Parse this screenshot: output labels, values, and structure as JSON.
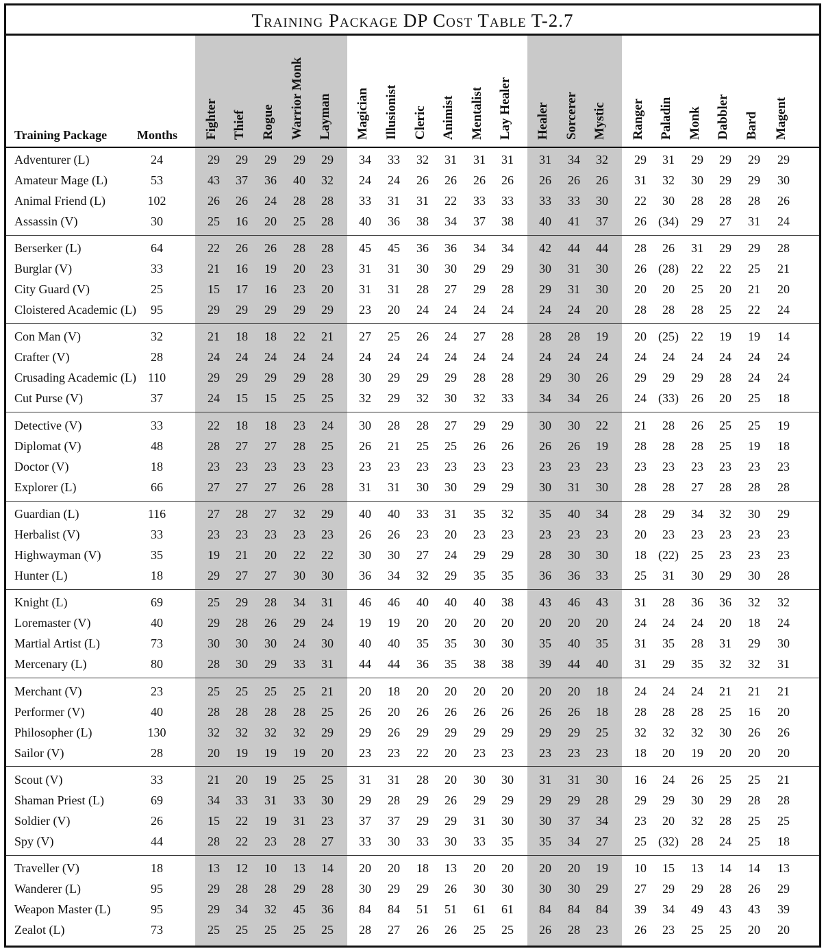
{
  "title": "Training Package DP Cost Table  T-2.7",
  "headers": {
    "package": "Training Package",
    "months": "Months",
    "professions": [
      "Fighter",
      "Thief",
      "Rogue",
      "Warrior Monk",
      "Layman",
      "Magician",
      "Illusionist",
      "Cleric",
      "Animist",
      "Mentalist",
      "Lay Healer",
      "Healer",
      "Sorcerer",
      "Mystic",
      "Ranger",
      "Paladin",
      "Monk",
      "Dabbler",
      "Bard",
      "Magent"
    ]
  },
  "rows": [
    {
      "name": "Adventurer (L)",
      "months": "24",
      "costs": [
        "29",
        "29",
        "29",
        "29",
        "29",
        "34",
        "33",
        "32",
        "31",
        "31",
        "31",
        "31",
        "34",
        "32",
        "29",
        "31",
        "29",
        "29",
        "29",
        "29"
      ]
    },
    {
      "name": "Amateur Mage (L)",
      "months": "53",
      "costs": [
        "43",
        "37",
        "36",
        "40",
        "32",
        "24",
        "24",
        "26",
        "26",
        "26",
        "26",
        "26",
        "26",
        "26",
        "31",
        "32",
        "30",
        "29",
        "29",
        "30"
      ]
    },
    {
      "name": "Animal Friend (L)",
      "months": "102",
      "costs": [
        "26",
        "26",
        "24",
        "28",
        "28",
        "33",
        "31",
        "31",
        "22",
        "33",
        "33",
        "33",
        "33",
        "30",
        "22",
        "30",
        "28",
        "28",
        "28",
        "26"
      ]
    },
    {
      "name": "Assassin (V)",
      "months": "30",
      "costs": [
        "25",
        "16",
        "20",
        "25",
        "28",
        "40",
        "36",
        "38",
        "34",
        "37",
        "38",
        "40",
        "41",
        "37",
        "26",
        "(34)",
        "29",
        "27",
        "31",
        "24"
      ]
    },
    {
      "name": "Berserker (L)",
      "months": "64",
      "costs": [
        "22",
        "26",
        "26",
        "28",
        "28",
        "45",
        "45",
        "36",
        "36",
        "34",
        "34",
        "42",
        "44",
        "44",
        "28",
        "26",
        "31",
        "29",
        "29",
        "28"
      ]
    },
    {
      "name": "Burglar (V)",
      "months": "33",
      "costs": [
        "21",
        "16",
        "19",
        "20",
        "23",
        "31",
        "31",
        "30",
        "30",
        "29",
        "29",
        "30",
        "31",
        "30",
        "26",
        "(28)",
        "22",
        "22",
        "25",
        "21"
      ]
    },
    {
      "name": "City Guard (V)",
      "months": "25",
      "costs": [
        "15",
        "17",
        "16",
        "23",
        "20",
        "31",
        "31",
        "28",
        "27",
        "29",
        "28",
        "29",
        "31",
        "30",
        "20",
        "20",
        "25",
        "20",
        "21",
        "20"
      ]
    },
    {
      "name": "Cloistered Academic (L)",
      "months": "95",
      "costs": [
        "29",
        "29",
        "29",
        "29",
        "29",
        "23",
        "20",
        "24",
        "24",
        "24",
        "24",
        "24",
        "24",
        "20",
        "28",
        "28",
        "28",
        "25",
        "22",
        "24"
      ]
    },
    {
      "name": "Con Man (V)",
      "months": "32",
      "costs": [
        "21",
        "18",
        "18",
        "22",
        "21",
        "27",
        "25",
        "26",
        "24",
        "27",
        "28",
        "28",
        "28",
        "19",
        "20",
        "(25)",
        "22",
        "19",
        "19",
        "14"
      ]
    },
    {
      "name": "Crafter (V)",
      "months": "28",
      "costs": [
        "24",
        "24",
        "24",
        "24",
        "24",
        "24",
        "24",
        "24",
        "24",
        "24",
        "24",
        "24",
        "24",
        "24",
        "24",
        "24",
        "24",
        "24",
        "24",
        "24"
      ]
    },
    {
      "name": "Crusading Academic (L)",
      "months": "110",
      "costs": [
        "29",
        "29",
        "29",
        "29",
        "28",
        "30",
        "29",
        "29",
        "29",
        "28",
        "28",
        "29",
        "30",
        "26",
        "29",
        "29",
        "29",
        "28",
        "24",
        "24"
      ]
    },
    {
      "name": "Cut Purse (V)",
      "months": "37",
      "costs": [
        "24",
        "15",
        "15",
        "25",
        "25",
        "32",
        "29",
        "32",
        "30",
        "32",
        "33",
        "34",
        "34",
        "26",
        "24",
        "(33)",
        "26",
        "20",
        "25",
        "18"
      ]
    },
    {
      "name": "Detective (V)",
      "months": "33",
      "costs": [
        "22",
        "18",
        "18",
        "23",
        "24",
        "30",
        "28",
        "28",
        "27",
        "29",
        "29",
        "30",
        "30",
        "22",
        "21",
        "28",
        "26",
        "25",
        "25",
        "19"
      ]
    },
    {
      "name": "Diplomat (V)",
      "months": "48",
      "costs": [
        "28",
        "27",
        "27",
        "28",
        "25",
        "26",
        "21",
        "25",
        "25",
        "26",
        "26",
        "26",
        "26",
        "19",
        "28",
        "28",
        "28",
        "25",
        "19",
        "18"
      ]
    },
    {
      "name": "Doctor (V)",
      "months": "18",
      "costs": [
        "23",
        "23",
        "23",
        "23",
        "23",
        "23",
        "23",
        "23",
        "23",
        "23",
        "23",
        "23",
        "23",
        "23",
        "23",
        "23",
        "23",
        "23",
        "23",
        "23"
      ]
    },
    {
      "name": "Explorer (L)",
      "months": "66",
      "costs": [
        "27",
        "27",
        "27",
        "26",
        "28",
        "31",
        "31",
        "30",
        "30",
        "29",
        "29",
        "30",
        "31",
        "30",
        "28",
        "28",
        "27",
        "28",
        "28",
        "28"
      ]
    },
    {
      "name": "Guardian (L)",
      "months": "116",
      "costs": [
        "27",
        "28",
        "27",
        "32",
        "29",
        "40",
        "40",
        "33",
        "31",
        "35",
        "32",
        "35",
        "40",
        "34",
        "28",
        "29",
        "34",
        "32",
        "30",
        "29"
      ]
    },
    {
      "name": "Herbalist (V)",
      "months": "33",
      "costs": [
        "23",
        "23",
        "23",
        "23",
        "23",
        "26",
        "26",
        "23",
        "20",
        "23",
        "23",
        "23",
        "23",
        "23",
        "20",
        "23",
        "23",
        "23",
        "23",
        "23"
      ]
    },
    {
      "name": "Highwayman (V)",
      "months": "35",
      "costs": [
        "19",
        "21",
        "20",
        "22",
        "22",
        "30",
        "30",
        "27",
        "24",
        "29",
        "29",
        "28",
        "30",
        "30",
        "18",
        "(22)",
        "25",
        "23",
        "23",
        "23"
      ]
    },
    {
      "name": "Hunter (L)",
      "months": "18",
      "costs": [
        "29",
        "27",
        "27",
        "30",
        "30",
        "36",
        "34",
        "32",
        "29",
        "35",
        "35",
        "36",
        "36",
        "33",
        "25",
        "31",
        "30",
        "29",
        "30",
        "28"
      ]
    },
    {
      "name": "Knight (L)",
      "months": "69",
      "costs": [
        "25",
        "29",
        "28",
        "34",
        "31",
        "46",
        "46",
        "40",
        "40",
        "40",
        "38",
        "43",
        "46",
        "43",
        "31",
        "28",
        "36",
        "36",
        "32",
        "32"
      ]
    },
    {
      "name": "Loremaster (V)",
      "months": "40",
      "costs": [
        "29",
        "28",
        "26",
        "29",
        "24",
        "19",
        "19",
        "20",
        "20",
        "20",
        "20",
        "20",
        "20",
        "20",
        "24",
        "24",
        "24",
        "20",
        "18",
        "24"
      ]
    },
    {
      "name": "Martial Artist (L)",
      "months": "73",
      "costs": [
        "30",
        "30",
        "30",
        "24",
        "30",
        "40",
        "40",
        "35",
        "35",
        "30",
        "30",
        "35",
        "40",
        "35",
        "31",
        "35",
        "28",
        "31",
        "29",
        "30"
      ]
    },
    {
      "name": "Mercenary (L)",
      "months": "80",
      "costs": [
        "28",
        "30",
        "29",
        "33",
        "31",
        "44",
        "44",
        "36",
        "35",
        "38",
        "38",
        "39",
        "44",
        "40",
        "31",
        "29",
        "35",
        "32",
        "32",
        "31"
      ]
    },
    {
      "name": "Merchant (V)",
      "months": "23",
      "costs": [
        "25",
        "25",
        "25",
        "25",
        "21",
        "20",
        "18",
        "20",
        "20",
        "20",
        "20",
        "20",
        "20",
        "18",
        "24",
        "24",
        "24",
        "21",
        "21",
        "21"
      ]
    },
    {
      "name": "Performer (V)",
      "months": "40",
      "costs": [
        "28",
        "28",
        "28",
        "28",
        "25",
        "26",
        "20",
        "26",
        "26",
        "26",
        "26",
        "26",
        "26",
        "18",
        "28",
        "28",
        "28",
        "25",
        "16",
        "20"
      ]
    },
    {
      "name": "Philosopher (L)",
      "months": "130",
      "costs": [
        "32",
        "32",
        "32",
        "32",
        "29",
        "29",
        "26",
        "29",
        "29",
        "29",
        "29",
        "29",
        "29",
        "25",
        "32",
        "32",
        "32",
        "30",
        "26",
        "26"
      ]
    },
    {
      "name": "Sailor (V)",
      "months": "28",
      "costs": [
        "20",
        "19",
        "19",
        "19",
        "20",
        "23",
        "23",
        "22",
        "20",
        "23",
        "23",
        "23",
        "23",
        "23",
        "18",
        "20",
        "19",
        "20",
        "20",
        "20"
      ]
    },
    {
      "name": "Scout (V)",
      "months": "33",
      "costs": [
        "21",
        "20",
        "19",
        "25",
        "25",
        "31",
        "31",
        "28",
        "20",
        "30",
        "30",
        "31",
        "31",
        "30",
        "16",
        "24",
        "26",
        "25",
        "25",
        "21"
      ]
    },
    {
      "name": "Shaman Priest (L)",
      "months": "69",
      "costs": [
        "34",
        "33",
        "31",
        "33",
        "30",
        "29",
        "28",
        "29",
        "26",
        "29",
        "29",
        "29",
        "29",
        "28",
        "29",
        "29",
        "30",
        "29",
        "28",
        "28"
      ]
    },
    {
      "name": "Soldier (V)",
      "months": "26",
      "costs": [
        "15",
        "22",
        "19",
        "31",
        "23",
        "37",
        "37",
        "29",
        "29",
        "31",
        "30",
        "30",
        "37",
        "34",
        "23",
        "20",
        "32",
        "28",
        "25",
        "25"
      ]
    },
    {
      "name": "Spy (V)",
      "months": "44",
      "costs": [
        "28",
        "22",
        "23",
        "28",
        "27",
        "33",
        "30",
        "33",
        "30",
        "33",
        "35",
        "35",
        "34",
        "27",
        "25",
        "(32)",
        "28",
        "24",
        "25",
        "18"
      ]
    },
    {
      "name": "Traveller (V)",
      "months": "18",
      "costs": [
        "13",
        "12",
        "10",
        "13",
        "14",
        "20",
        "20",
        "18",
        "13",
        "20",
        "20",
        "20",
        "20",
        "19",
        "10",
        "15",
        "13",
        "14",
        "14",
        "13"
      ]
    },
    {
      "name": "Wanderer (L)",
      "months": "95",
      "costs": [
        "29",
        "28",
        "28",
        "29",
        "28",
        "30",
        "29",
        "29",
        "26",
        "30",
        "30",
        "30",
        "30",
        "29",
        "27",
        "29",
        "29",
        "28",
        "26",
        "29"
      ]
    },
    {
      "name": "Weapon Master (L)",
      "months": "95",
      "costs": [
        "29",
        "34",
        "32",
        "45",
        "36",
        "84",
        "84",
        "51",
        "51",
        "61",
        "61",
        "84",
        "84",
        "84",
        "39",
        "34",
        "49",
        "43",
        "43",
        "39"
      ]
    },
    {
      "name": "Zealot (L)",
      "months": "73",
      "costs": [
        "25",
        "25",
        "25",
        "25",
        "25",
        "28",
        "27",
        "26",
        "26",
        "25",
        "25",
        "26",
        "28",
        "23",
        "26",
        "23",
        "25",
        "25",
        "20",
        "20"
      ]
    }
  ]
}
